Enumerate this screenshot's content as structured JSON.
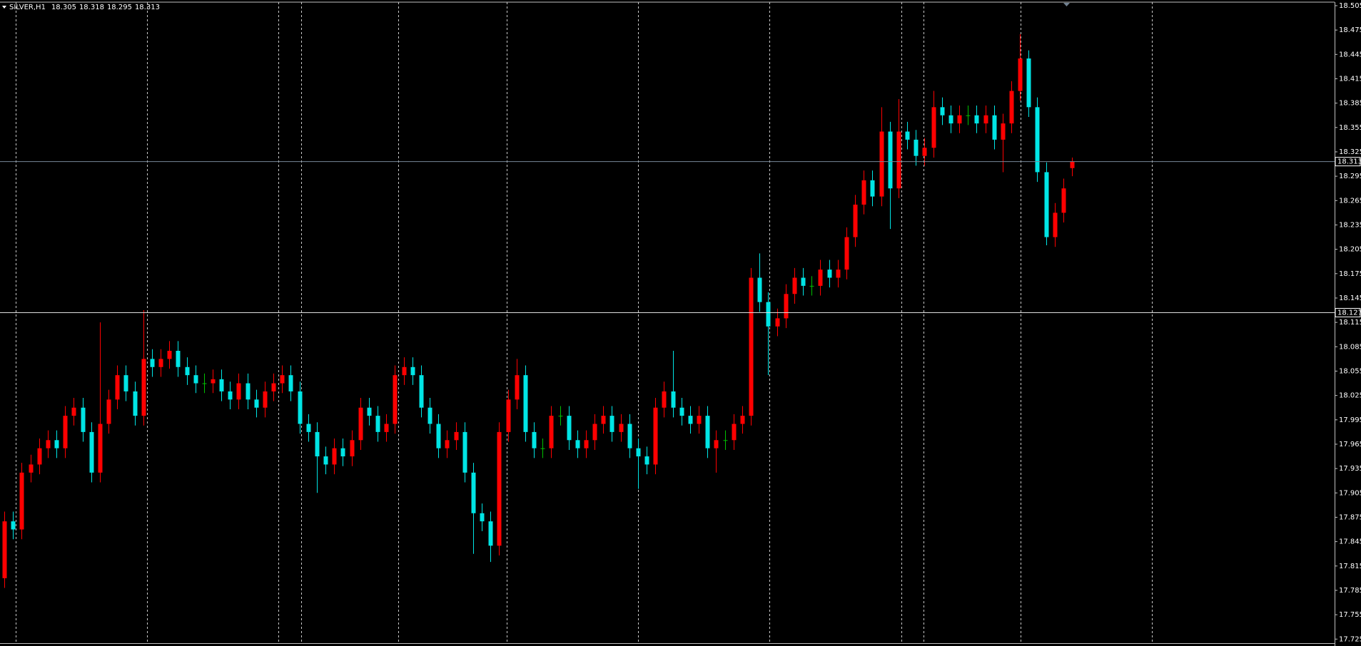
{
  "chart_data": {
    "type": "candlestick",
    "title": "SILVER,H1",
    "open": [
      17.8,
      17.87,
      17.86,
      17.93,
      17.94,
      17.96,
      17.97,
      17.96,
      18.0,
      18.01,
      17.98,
      17.93,
      17.99,
      18.02,
      18.05,
      18.03,
      18.0,
      18.07,
      18.06,
      18.07,
      18.08,
      18.06,
      18.05,
      18.04,
      18.04,
      18.045,
      18.03,
      18.02,
      18.04,
      18.02,
      18.01,
      18.03,
      18.04,
      18.05,
      18.03,
      17.99,
      17.98,
      17.95,
      17.94,
      17.96,
      17.95,
      17.97,
      18.01,
      18.0,
      17.98,
      17.99,
      18.05,
      18.06,
      18.05,
      18.01,
      17.99,
      17.96,
      17.97,
      17.98,
      17.93,
      17.88,
      17.87,
      17.84,
      17.98,
      18.02,
      18.05,
      17.98,
      17.96,
      17.96,
      18.0,
      18.0,
      17.97,
      17.96,
      17.97,
      17.99,
      18.0,
      17.98,
      17.99,
      17.96,
      17.95,
      17.94,
      18.01,
      18.03,
      18.01,
      18.0,
      17.99,
      18.0,
      17.96,
      17.97,
      17.97,
      17.99,
      18.0,
      18.17,
      18.14,
      18.11,
      18.12,
      18.15,
      18.17,
      18.16,
      18.16,
      18.18,
      18.17,
      18.18,
      18.22,
      18.26,
      18.29,
      18.27,
      18.35,
      18.28,
      18.35,
      18.34,
      18.32,
      18.33,
      18.38,
      18.37,
      18.36,
      18.37,
      18.37,
      18.36,
      18.37,
      18.34,
      18.36,
      18.4,
      18.44,
      18.38,
      18.3,
      18.22,
      18.25,
      18.305
    ],
    "high": [
      17.882,
      17.882,
      17.942,
      17.952,
      17.972,
      17.982,
      17.982,
      18.012,
      18.022,
      18.022,
      17.992,
      18.115,
      18.032,
      18.062,
      18.062,
      18.042,
      18.13,
      18.082,
      18.082,
      18.092,
      18.092,
      18.072,
      18.062,
      18.052,
      18.057,
      18.057,
      18.042,
      18.052,
      18.052,
      18.032,
      18.042,
      18.052,
      18.062,
      18.062,
      18.042,
      18.002,
      17.992,
      17.962,
      17.972,
      17.972,
      17.982,
      18.022,
      18.022,
      18.012,
      18.002,
      18.062,
      18.072,
      18.072,
      18.062,
      18.022,
      18.002,
      17.982,
      17.992,
      17.992,
      17.942,
      17.892,
      17.882,
      17.992,
      18.032,
      18.07,
      18.062,
      17.992,
      17.972,
      18.012,
      18.012,
      18.012,
      17.982,
      17.982,
      18.002,
      18.012,
      18.012,
      18.002,
      18.002,
      17.972,
      17.962,
      18.022,
      18.042,
      18.08,
      18.022,
      18.012,
      18.012,
      18.012,
      17.982,
      17.982,
      18.002,
      18.012,
      18.182,
      18.2,
      18.152,
      18.132,
      18.162,
      18.182,
      18.182,
      18.172,
      18.192,
      18.192,
      18.192,
      18.232,
      18.272,
      18.302,
      18.302,
      18.38,
      18.362,
      18.39,
      18.362,
      18.352,
      18.342,
      18.4,
      18.392,
      18.382,
      18.382,
      18.382,
      18.382,
      18.382,
      18.382,
      18.372,
      18.412,
      18.47,
      18.45,
      18.392,
      18.312,
      18.262,
      18.292,
      18.318
    ],
    "low": [
      17.788,
      17.848,
      17.848,
      17.918,
      17.928,
      17.948,
      17.948,
      17.948,
      17.988,
      17.968,
      17.918,
      17.918,
      17.978,
      18.008,
      18.018,
      17.988,
      17.988,
      18.048,
      18.048,
      18.058,
      18.048,
      18.038,
      18.028,
      18.028,
      18.028,
      18.018,
      18.008,
      18.008,
      18.008,
      17.998,
      17.998,
      18.018,
      18.028,
      18.018,
      17.978,
      17.968,
      17.905,
      17.928,
      17.928,
      17.938,
      17.938,
      17.958,
      17.988,
      17.968,
      17.968,
      17.978,
      18.038,
      18.038,
      17.998,
      17.978,
      17.948,
      17.948,
      17.958,
      17.918,
      17.83,
      17.858,
      17.82,
      17.828,
      17.968,
      18.008,
      17.968,
      17.948,
      17.948,
      17.948,
      17.988,
      17.958,
      17.948,
      17.948,
      17.958,
      17.978,
      17.968,
      17.968,
      17.948,
      17.91,
      17.928,
      17.928,
      17.998,
      17.998,
      17.988,
      17.978,
      17.978,
      17.948,
      17.93,
      17.958,
      17.958,
      17.978,
      17.988,
      18.128,
      18.05,
      18.098,
      18.108,
      18.138,
      18.148,
      18.148,
      18.148,
      18.158,
      18.158,
      18.168,
      18.208,
      18.248,
      18.258,
      18.258,
      18.23,
      18.268,
      18.328,
      18.308,
      18.308,
      18.318,
      18.358,
      18.348,
      18.348,
      18.358,
      18.348,
      18.348,
      18.328,
      18.3,
      18.348,
      18.388,
      18.368,
      18.288,
      18.21,
      18.208,
      18.238,
      18.295
    ],
    "close": [
      17.87,
      17.86,
      17.93,
      17.94,
      17.96,
      17.97,
      17.96,
      18.0,
      18.01,
      17.98,
      17.93,
      17.99,
      18.02,
      18.05,
      18.03,
      18.0,
      18.07,
      18.06,
      18.07,
      18.08,
      18.06,
      18.05,
      18.04,
      18.04,
      18.045,
      18.03,
      18.02,
      18.04,
      18.02,
      18.01,
      18.03,
      18.04,
      18.05,
      18.03,
      17.99,
      17.98,
      17.95,
      17.94,
      17.96,
      17.95,
      17.97,
      18.01,
      18.0,
      17.98,
      17.99,
      18.05,
      18.06,
      18.05,
      18.01,
      17.99,
      17.96,
      17.97,
      17.98,
      17.93,
      17.88,
      17.87,
      17.84,
      17.98,
      18.02,
      18.05,
      17.98,
      17.96,
      17.96,
      18.0,
      18.0,
      17.97,
      17.96,
      17.97,
      17.99,
      18.0,
      17.98,
      17.99,
      17.96,
      17.95,
      17.94,
      18.01,
      18.03,
      18.01,
      18.0,
      17.99,
      18.0,
      17.96,
      17.97,
      17.97,
      17.99,
      18.0,
      18.17,
      18.14,
      18.11,
      18.12,
      18.15,
      18.17,
      18.16,
      18.16,
      18.18,
      18.17,
      18.18,
      18.22,
      18.26,
      18.29,
      18.27,
      18.35,
      18.28,
      18.35,
      18.34,
      18.32,
      18.33,
      18.38,
      18.37,
      18.36,
      18.37,
      18.37,
      18.36,
      18.37,
      18.34,
      18.36,
      18.4,
      18.44,
      18.38,
      18.3,
      18.22,
      18.25,
      18.28,
      18.313
    ],
    "bull_color": "#ff0000",
    "bear_color": "#00e5e5",
    "doji_color": "#00c000",
    "ylim": [
      17.72,
      18.512
    ],
    "yticks": [
      18.505,
      18.475,
      18.445,
      18.415,
      18.385,
      18.355,
      18.325,
      18.295,
      18.265,
      18.235,
      18.205,
      18.175,
      18.145,
      18.115,
      18.085,
      18.055,
      18.025,
      17.995,
      17.965,
      17.935,
      17.905,
      17.875,
      17.845,
      17.815,
      17.785,
      17.755,
      17.725
    ],
    "bid_line": 18.313,
    "level_line": 18.127
  }
}
